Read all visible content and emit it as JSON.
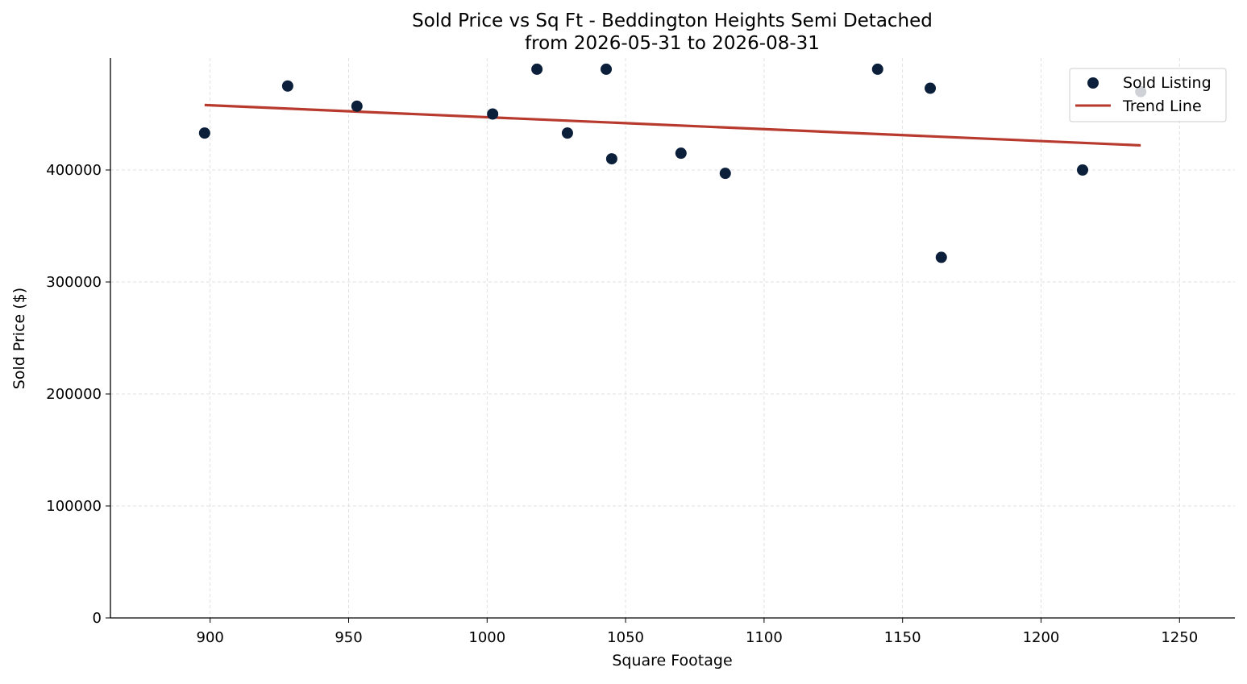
{
  "chart_data": {
    "type": "scatter",
    "title": "Sold Price vs Sq Ft - Beddington Heights Semi Detached",
    "subtitle": "from 2026-05-31 to 2026-08-31",
    "xlabel": "Square Footage",
    "ylabel": "Sold Price ($)",
    "xlim": [
      864,
      1270
    ],
    "ylim": [
      0,
      500000
    ],
    "x_ticks": [
      900,
      950,
      1000,
      1050,
      1100,
      1150,
      1200,
      1250
    ],
    "y_ticks": [
      0,
      100000,
      200000,
      300000,
      400000
    ],
    "grid": true,
    "legend_position": "top-right",
    "series": [
      {
        "name": "Sold Listing",
        "kind": "scatter",
        "color": "#0b1f3a",
        "points": [
          {
            "x": 898,
            "y": 433000
          },
          {
            "x": 928,
            "y": 475000
          },
          {
            "x": 953,
            "y": 457000
          },
          {
            "x": 1002,
            "y": 450000
          },
          {
            "x": 1018,
            "y": 490000
          },
          {
            "x": 1029,
            "y": 433000
          },
          {
            "x": 1043,
            "y": 490000
          },
          {
            "x": 1045,
            "y": 410000
          },
          {
            "x": 1070,
            "y": 415000
          },
          {
            "x": 1086,
            "y": 397000
          },
          {
            "x": 1141,
            "y": 490000
          },
          {
            "x": 1160,
            "y": 473000
          },
          {
            "x": 1164,
            "y": 322000
          },
          {
            "x": 1215,
            "y": 400000
          },
          {
            "x": 1236,
            "y": 470000
          }
        ]
      },
      {
        "name": "Trend Line",
        "kind": "line",
        "color": "#b83a2e",
        "points": [
          {
            "x": 898,
            "y": 458000
          },
          {
            "x": 1236,
            "y": 422000
          }
        ]
      }
    ]
  }
}
